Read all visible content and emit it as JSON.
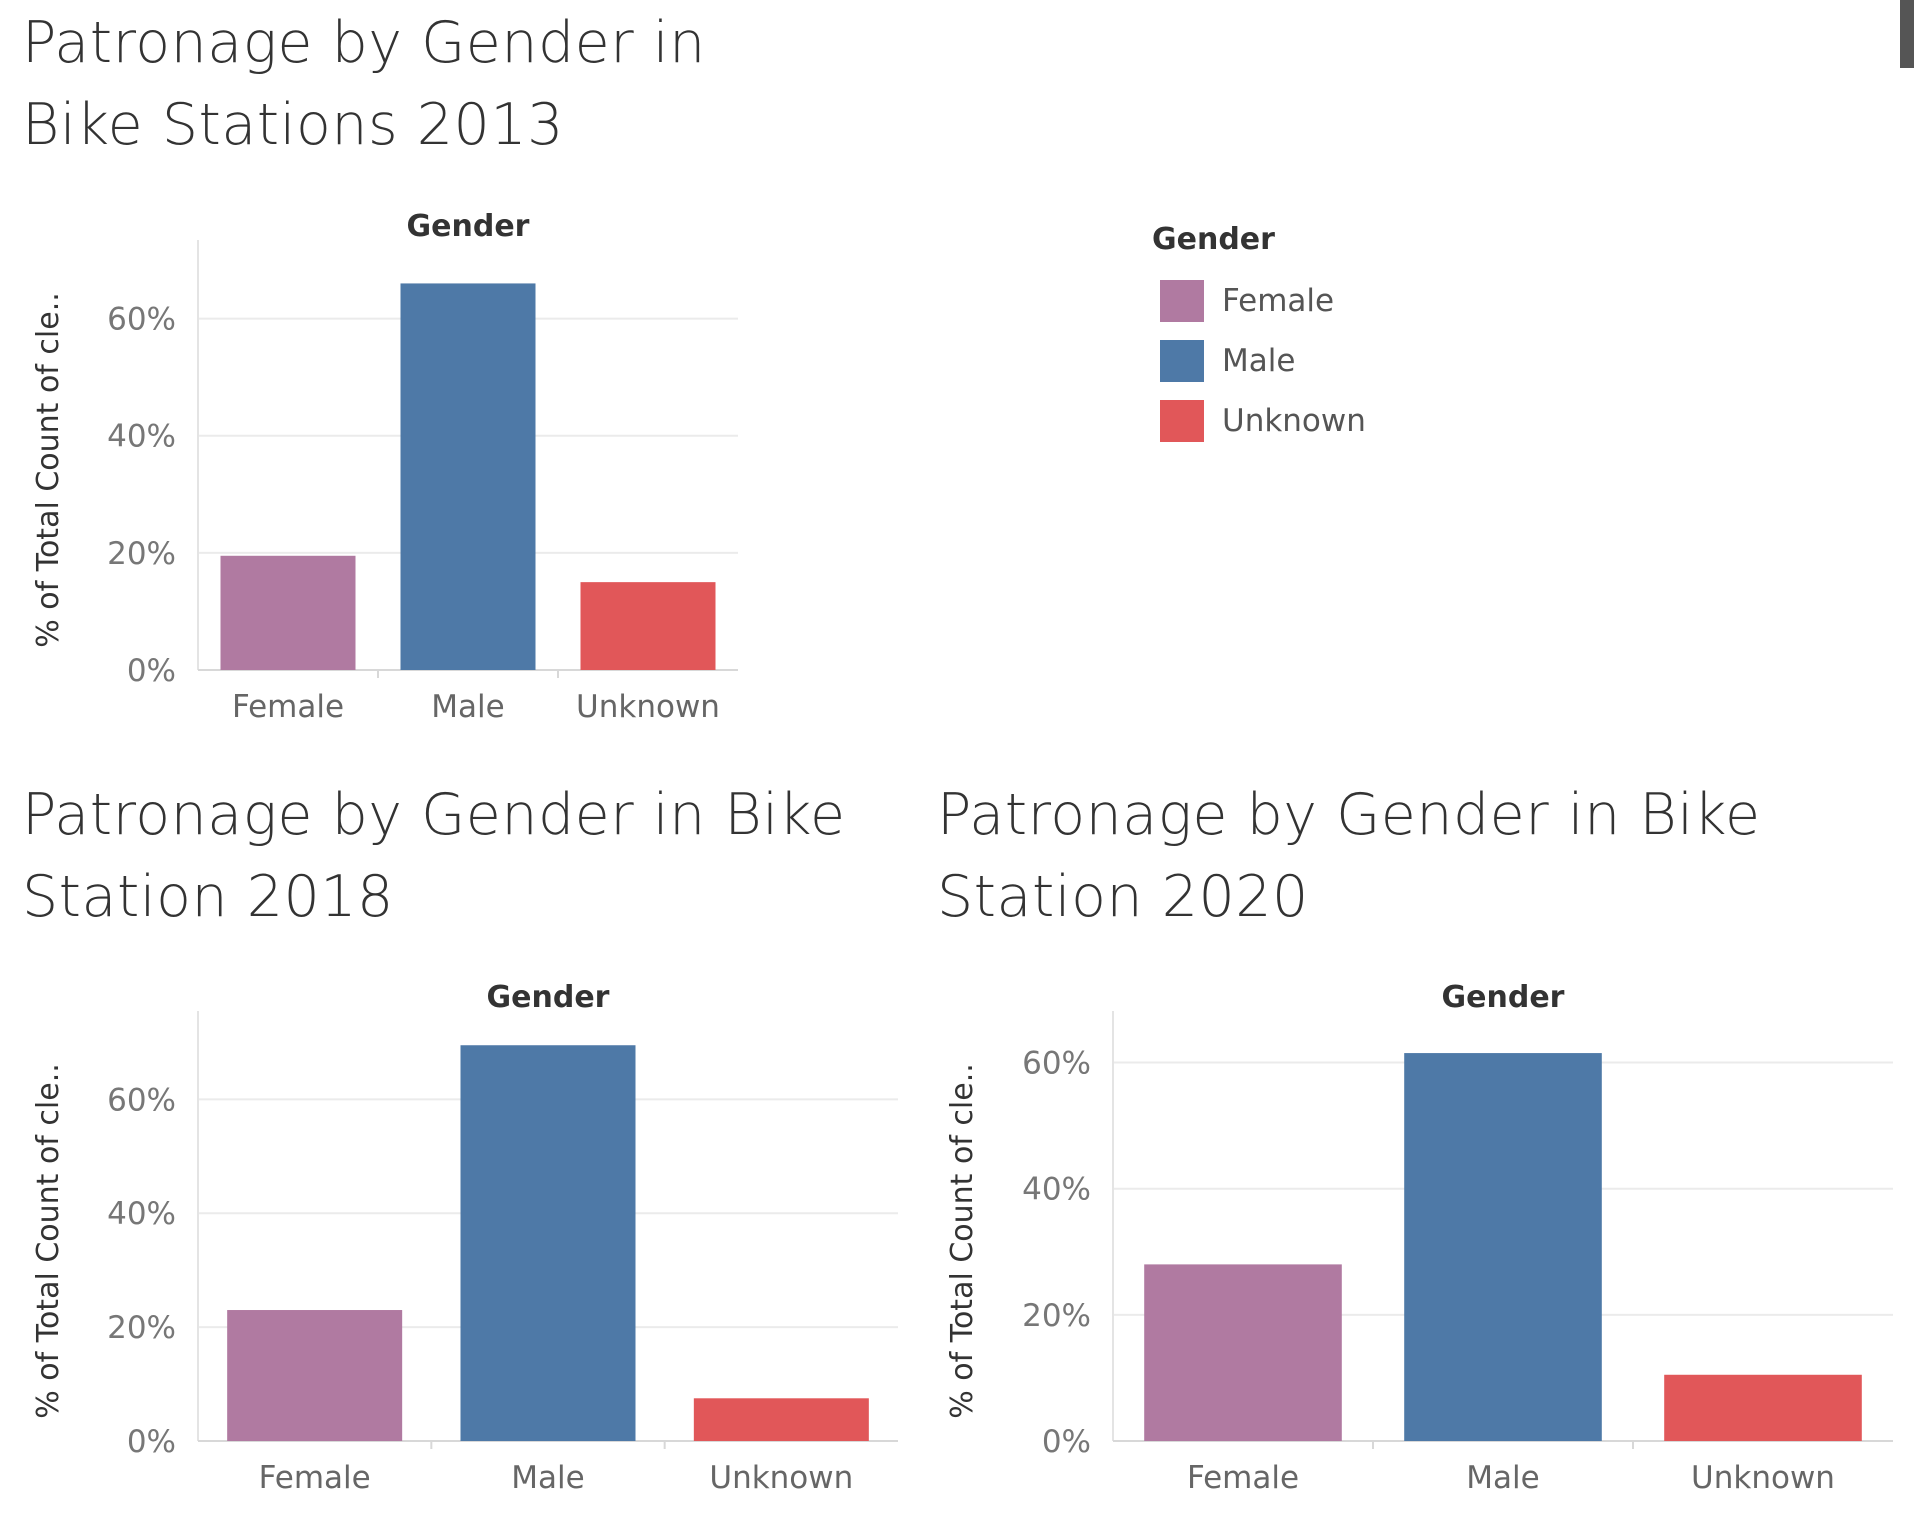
{
  "titles": {
    "chart_2013": "Patronage by Gender in\nBike Stations 2013",
    "chart_2018": "Patronage by Gender in Bike\nStation 2018",
    "chart_2020": "Patronage by Gender in Bike\nStation 2020"
  },
  "legend": {
    "title": "Gender",
    "items": [
      {
        "label": "Female",
        "color": "#b07aa1"
      },
      {
        "label": "Male",
        "color": "#4e79a7"
      },
      {
        "label": "Unknown",
        "color": "#e15759"
      }
    ]
  },
  "chart_data": [
    {
      "type": "bar",
      "title": "Patronage by Gender in Bike Stations 2013",
      "column_header": "Gender",
      "ylabel": "% of Total Count of cle..",
      "categories": [
        "Female",
        "Male",
        "Unknown"
      ],
      "values": [
        19.5,
        66,
        15
      ],
      "ylim": [
        0,
        70
      ],
      "yticks": [
        0,
        20,
        40,
        60
      ],
      "ytick_labels": [
        "0%",
        "20%",
        "40%",
        "60%"
      ],
      "colors": [
        "#b07aa1",
        "#4e79a7",
        "#e15759"
      ],
      "grid": true
    },
    {
      "type": "bar",
      "title": "Patronage by Gender in Bike Station 2018",
      "column_header": "Gender",
      "ylabel": "% of Total Count of cle..",
      "categories": [
        "Female",
        "Male",
        "Unknown"
      ],
      "values": [
        23,
        69.5,
        7.5
      ],
      "ylim": [
        0,
        72
      ],
      "yticks": [
        0,
        20,
        40,
        60
      ],
      "ytick_labels": [
        "0%",
        "20%",
        "40%",
        "60%"
      ],
      "colors": [
        "#b07aa1",
        "#4e79a7",
        "#e15759"
      ],
      "grid": true
    },
    {
      "type": "bar",
      "title": "Patronage by Gender in Bike Station 2020",
      "column_header": "Gender",
      "ylabel": "% of Total Count of cle..",
      "categories": [
        "Female",
        "Male",
        "Unknown"
      ],
      "values": [
        28,
        61.5,
        10.5
      ],
      "ylim": [
        0,
        65
      ],
      "yticks": [
        0,
        20,
        40,
        60
      ],
      "ytick_labels": [
        "0%",
        "20%",
        "40%",
        "60%"
      ],
      "colors": [
        "#b07aa1",
        "#4e79a7",
        "#e15759"
      ],
      "grid": true
    }
  ]
}
